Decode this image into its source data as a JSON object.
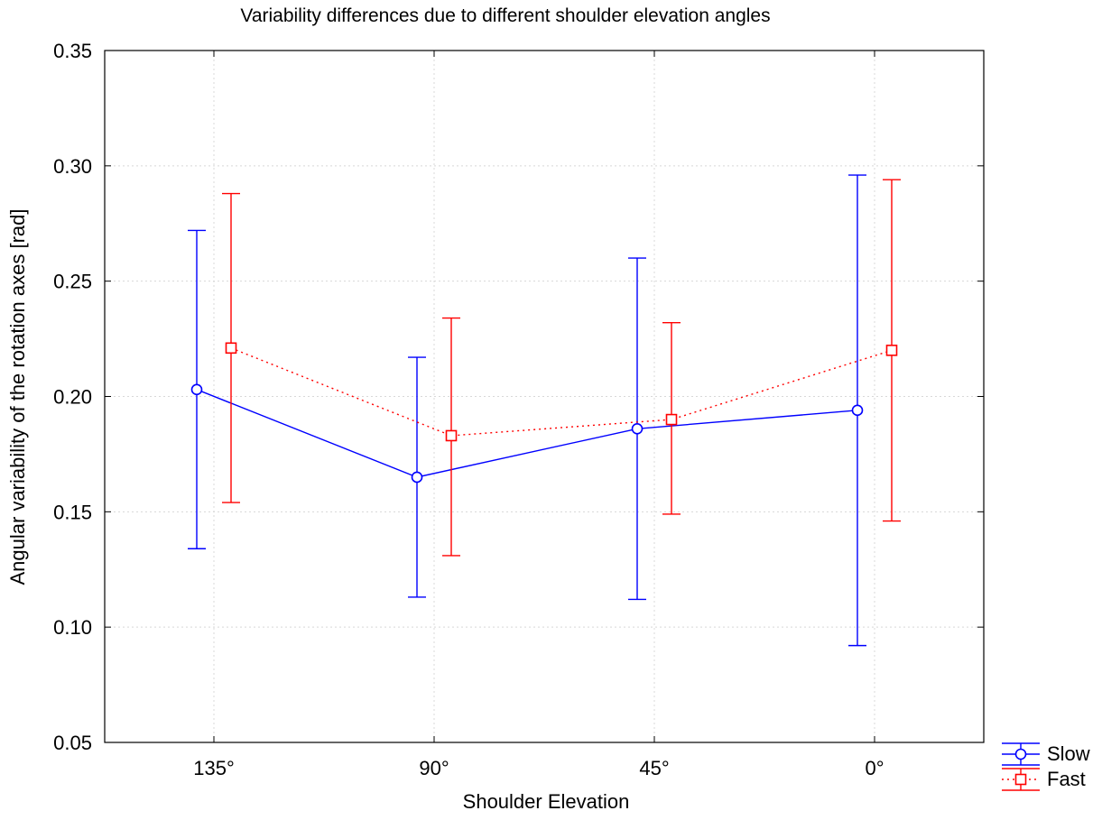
{
  "chart_data": {
    "type": "line",
    "title": "Variability differences due to different shoulder elevation angles",
    "xlabel": "Shoulder Elevation",
    "ylabel": "Angular variability of the rotation axes [rad]",
    "categories": [
      "135°",
      "90°",
      "45°",
      "0°"
    ],
    "ylim": [
      0.05,
      0.35
    ],
    "yticks": [
      0.05,
      0.1,
      0.15,
      0.2,
      0.25,
      0.3,
      0.35
    ],
    "ytick_labels": [
      "0.05",
      "0.10",
      "0.15",
      "0.20",
      "0.25",
      "0.30",
      "0.35"
    ],
    "grid": true,
    "legend_position": "bottom-right outside",
    "series": [
      {
        "name": "Slow",
        "color": "#0000ff",
        "marker": "circle",
        "line_style": "solid",
        "values": [
          0.203,
          0.165,
          0.186,
          0.194
        ],
        "error_low": [
          0.134,
          0.113,
          0.112,
          0.092
        ],
        "error_high": [
          0.272,
          0.217,
          0.26,
          0.296
        ]
      },
      {
        "name": "Fast",
        "color": "#ff0000",
        "marker": "square",
        "line_style": "dotted",
        "values": [
          0.221,
          0.183,
          0.19,
          0.22
        ],
        "error_low": [
          0.154,
          0.131,
          0.149,
          0.146
        ],
        "error_high": [
          0.288,
          0.234,
          0.232,
          0.294
        ]
      }
    ]
  }
}
